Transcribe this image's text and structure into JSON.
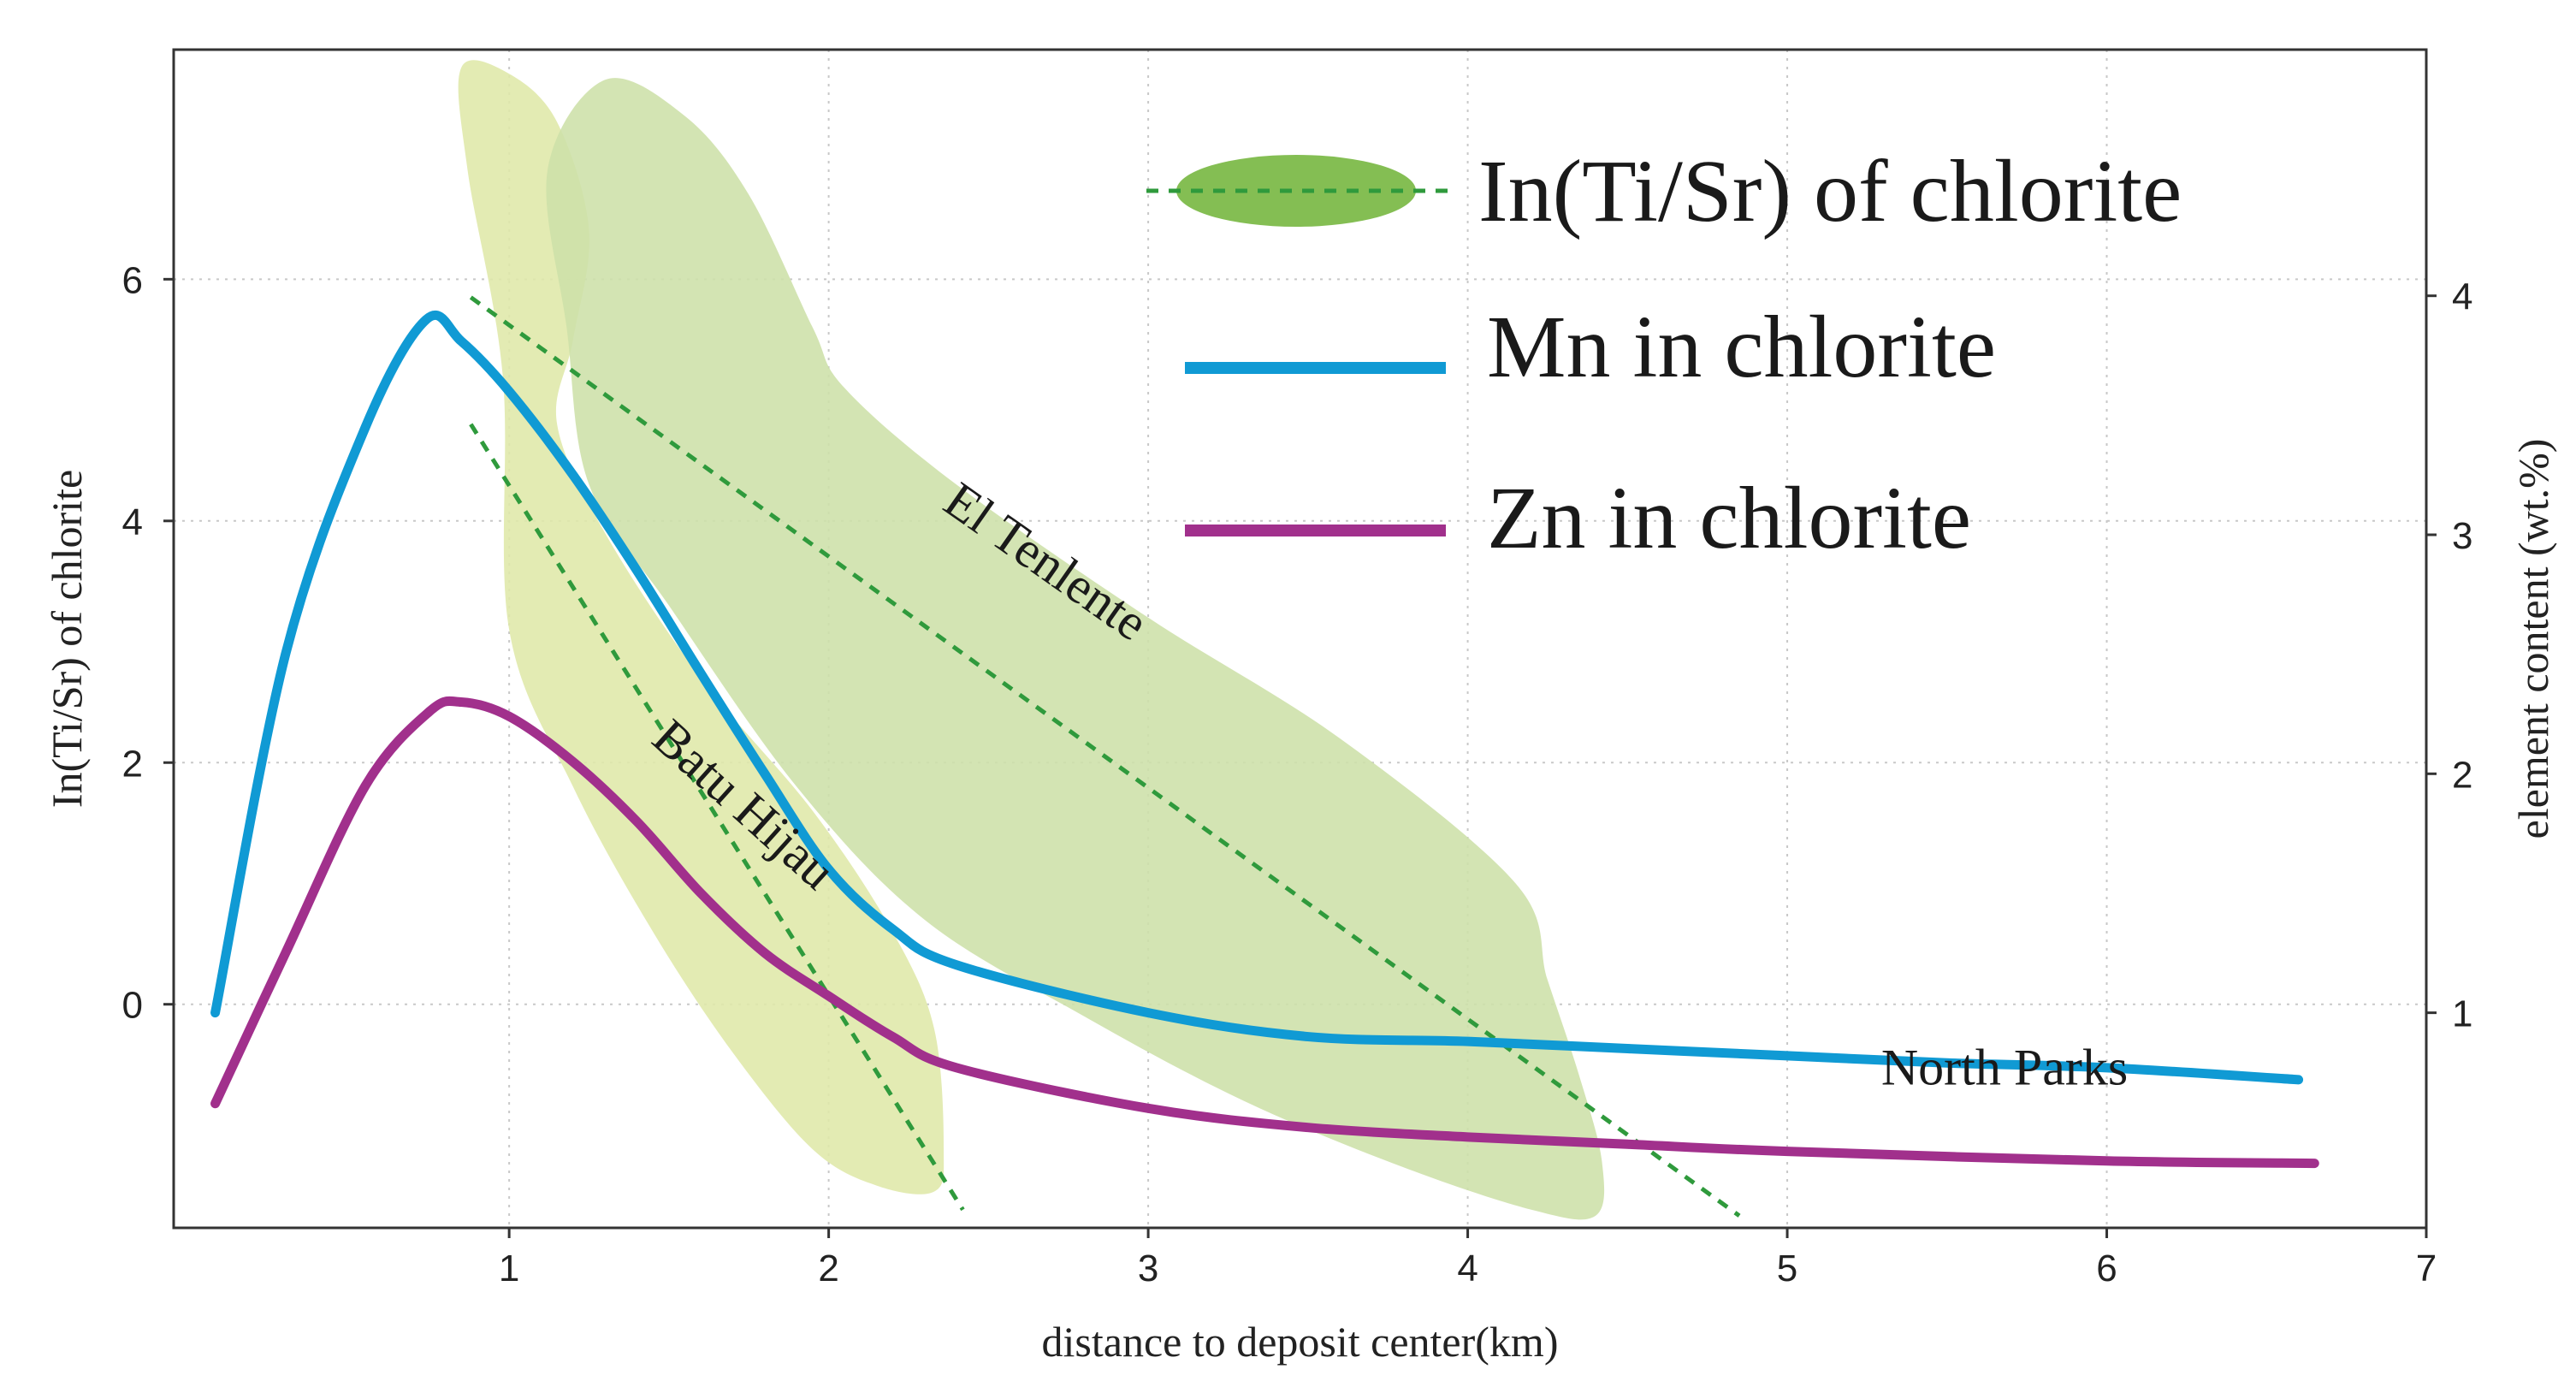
{
  "chart_data": {
    "type": "line",
    "title": "",
    "xlabel": "distance to deposit center(km)",
    "ylabel_left": "In(Ti/Sr) of chlorite",
    "ylabel_right": "element content (wt.%)",
    "xlim": [
      -0.05,
      7
    ],
    "ylim_left": [
      -1.85,
      7.9
    ],
    "ylim_right": [
      0.1,
      5.03
    ],
    "x_ticks": [
      1,
      2,
      3,
      4,
      5,
      6,
      7
    ],
    "y_ticks_left": [
      0,
      2,
      4,
      6
    ],
    "y_ticks_right": [
      1,
      2,
      3,
      4
    ],
    "grid": true,
    "legend_position": "top-right",
    "legend": [
      {
        "label": "In(Ti/Sr) of chlorite",
        "marker": "green-ellipse-dashed"
      },
      {
        "label": "Mn in chlorite",
        "marker": "blue-line"
      },
      {
        "label": "Zn in chlorite",
        "marker": "magenta-line"
      }
    ],
    "series": [
      {
        "name": "Mn in chlorite",
        "axis": "right",
        "color": "#109ad4",
        "x": [
          0.08,
          0.3,
          0.55,
          0.74,
          0.85,
          1.0,
          1.2,
          1.4,
          1.6,
          1.8,
          2.0,
          2.2,
          2.4,
          3.0,
          3.5,
          4.0,
          4.5,
          5.0,
          5.5,
          6.0,
          6.6
        ],
        "values": [
          1.0,
          2.5,
          3.45,
          3.9,
          3.81,
          3.6,
          3.25,
          2.85,
          2.42,
          2.0,
          1.6,
          1.35,
          1.2,
          1.0,
          0.9,
          0.88,
          0.85,
          0.82,
          0.79,
          0.77,
          0.72
        ]
      },
      {
        "name": "Zn in chlorite",
        "axis": "right",
        "color": "#a1308c",
        "x": [
          0.08,
          0.3,
          0.55,
          0.75,
          0.85,
          1.0,
          1.2,
          1.4,
          1.6,
          1.8,
          2.0,
          2.2,
          2.4,
          3.0,
          3.5,
          4.0,
          4.5,
          5.0,
          6.0,
          6.65
        ],
        "values": [
          0.62,
          1.25,
          1.95,
          2.26,
          2.3,
          2.24,
          2.05,
          1.8,
          1.5,
          1.25,
          1.07,
          0.9,
          0.77,
          0.6,
          0.52,
          0.48,
          0.45,
          0.42,
          0.38,
          0.37
        ]
      },
      {
        "name": "Batu Hijau trend (In(Ti/Sr))",
        "axis": "left",
        "style": "dashed",
        "color": "#2f9a3c",
        "x": [
          0.88,
          2.42
        ],
        "values": [
          4.8,
          -1.7
        ]
      },
      {
        "name": "El Tenlente trend (In(Ti/Sr))",
        "axis": "left",
        "style": "dashed",
        "color": "#2f9a3c",
        "x": [
          0.88,
          4.85
        ],
        "values": [
          5.85,
          -1.75
        ]
      }
    ],
    "regions": [
      {
        "name": "Batu Hijau",
        "axis": "left",
        "color": "#dfe8a8",
        "points": [
          [
            0.85,
            7.75
          ],
          [
            1.0,
            7.7
          ],
          [
            1.15,
            7.3
          ],
          [
            1.25,
            6.4
          ],
          [
            1.2,
            5.5
          ],
          [
            1.15,
            4.8
          ],
          [
            1.3,
            3.9
          ],
          [
            1.6,
            2.7
          ],
          [
            1.95,
            1.6
          ],
          [
            2.2,
            0.6
          ],
          [
            2.33,
            -0.2
          ],
          [
            2.36,
            -1.2
          ],
          [
            2.33,
            -1.55
          ],
          [
            2.15,
            -1.5
          ],
          [
            1.95,
            -1.2
          ],
          [
            1.7,
            -0.4
          ],
          [
            1.45,
            0.6
          ],
          [
            1.2,
            1.8
          ],
          [
            1.0,
            3.1
          ],
          [
            0.98,
            5.2
          ],
          [
            0.87,
            6.9
          ]
        ]
      },
      {
        "name": "El Tenlente",
        "axis": "left",
        "color": "#cde0a8",
        "points": [
          [
            1.3,
            7.65
          ],
          [
            1.55,
            7.35
          ],
          [
            1.75,
            6.7
          ],
          [
            1.95,
            5.6
          ],
          [
            2.05,
            5.1
          ],
          [
            2.4,
            4.3
          ],
          [
            3.0,
            3.2
          ],
          [
            3.6,
            2.2
          ],
          [
            4.15,
            1.0
          ],
          [
            4.25,
            0.2
          ],
          [
            4.35,
            -0.6
          ],
          [
            4.42,
            -1.3
          ],
          [
            4.4,
            -1.75
          ],
          [
            4.2,
            -1.7
          ],
          [
            3.8,
            -1.35
          ],
          [
            3.3,
            -0.8
          ],
          [
            2.8,
            -0.1
          ],
          [
            2.3,
            0.7
          ],
          [
            1.9,
            1.8
          ],
          [
            1.5,
            3.3
          ],
          [
            1.25,
            4.3
          ],
          [
            1.18,
            5.6
          ],
          [
            1.12,
            6.9
          ]
        ]
      }
    ],
    "annotations": [
      {
        "text": "El Tenlente",
        "x": 2.65,
        "y": 3.55,
        "angle_deg": 35
      },
      {
        "text": "Batu Hijau",
        "x": 1.7,
        "y": 1.55,
        "angle_deg": 42
      },
      {
        "text": "North Parks",
        "x": 5.68,
        "y": 0.7,
        "axis": "right",
        "angle_deg": 0
      }
    ]
  }
}
